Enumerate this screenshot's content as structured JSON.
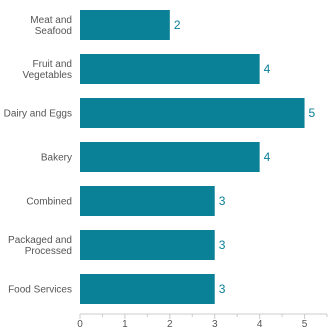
{
  "chart_data": {
    "type": "bar",
    "orientation": "horizontal",
    "categories": [
      "Meat and Seafood",
      "Fruit and Vegetables",
      "Dairy and Eggs",
      "Bakery",
      "Combined",
      "Packaged and Processed",
      "Food Services"
    ],
    "category_lines": [
      [
        "Meat and",
        "Seafood"
      ],
      [
        "Fruit and",
        "Vegetables"
      ],
      [
        "Dairy and Eggs"
      ],
      [
        "Bakery"
      ],
      [
        "Combined"
      ],
      [
        "Packaged and",
        "Processed"
      ],
      [
        "Food Services"
      ]
    ],
    "values": [
      2,
      4,
      5,
      4,
      3,
      3,
      3
    ],
    "data_labels": [
      "2",
      "4",
      "5",
      "4",
      "3",
      "3",
      "3"
    ],
    "xlim": [
      0,
      5.5
    ],
    "x_ticks": [
      0,
      1,
      2,
      3,
      4,
      5
    ],
    "x_tick_labels": [
      "0",
      "1",
      "2",
      "3",
      "4",
      "5"
    ],
    "title": "",
    "xlabel": "",
    "ylabel": "",
    "grid": false,
    "legend": "none",
    "colors": {
      "bar": "#0a8197",
      "data_label": "#0a8197",
      "axis": "#cccccc",
      "text": "#555555"
    }
  }
}
